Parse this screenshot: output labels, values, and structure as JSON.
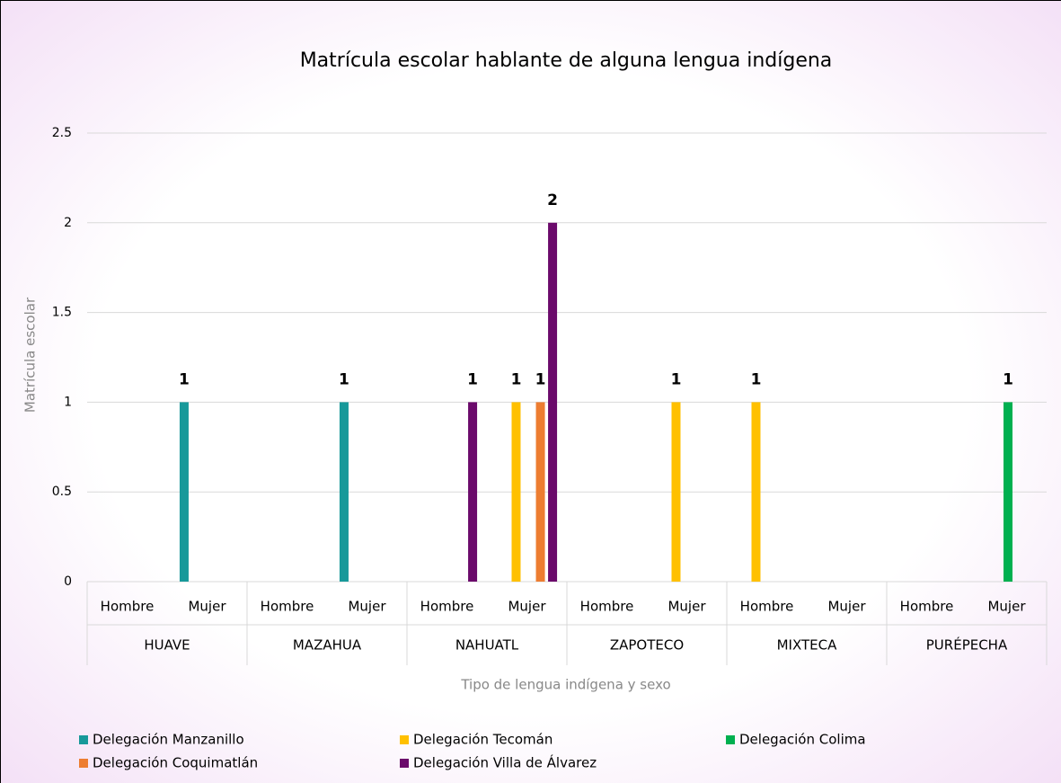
{
  "chart_data": {
    "type": "bar",
    "title": "Matrícula escolar hablante de alguna lengua indígena",
    "x_label": "Tipo de lengua indígena y sexo",
    "y_label": "Matrícula escolar",
    "groups": [
      "HUAVE",
      "MAZAHUA",
      "NAHUATL",
      "ZAPOTECO",
      "MIXTECA",
      "PURÉPECHA"
    ],
    "categories": [
      "Hombre",
      "Mujer",
      "Hombre",
      "Mujer",
      "Hombre",
      "Mujer",
      "Hombre",
      "Mujer",
      "Hombre",
      "Mujer",
      "Hombre",
      "Mujer"
    ],
    "series": [
      {
        "name": "Delegación Manzanillo",
        "color": "#17999a",
        "values": [
          null,
          1,
          null,
          1,
          null,
          null,
          null,
          null,
          null,
          null,
          null,
          null
        ]
      },
      {
        "name": "Delegación Tecomán",
        "color": "#ffc000",
        "values": [
          null,
          null,
          null,
          null,
          null,
          1,
          null,
          1,
          1,
          null,
          null,
          null
        ]
      },
      {
        "name": "Delegación Colima",
        "color": "#00b050",
        "values": [
          null,
          null,
          null,
          null,
          null,
          null,
          null,
          null,
          null,
          null,
          null,
          1
        ]
      },
      {
        "name": "Delegación Coquimatlán",
        "color": "#ed7d31",
        "values": [
          null,
          null,
          null,
          null,
          null,
          1,
          null,
          null,
          null,
          null,
          null,
          null
        ]
      },
      {
        "name": "Delegación Villa de Álvarez",
        "color": "#6b0a6b",
        "values": [
          null,
          null,
          null,
          null,
          1,
          2,
          null,
          null,
          null,
          null,
          null,
          null
        ]
      }
    ],
    "ylim": [
      0,
      2.5
    ],
    "yticks": [
      0,
      0.5,
      1,
      1.5,
      2,
      2.5
    ],
    "grid": true,
    "legend": "bottom"
  }
}
